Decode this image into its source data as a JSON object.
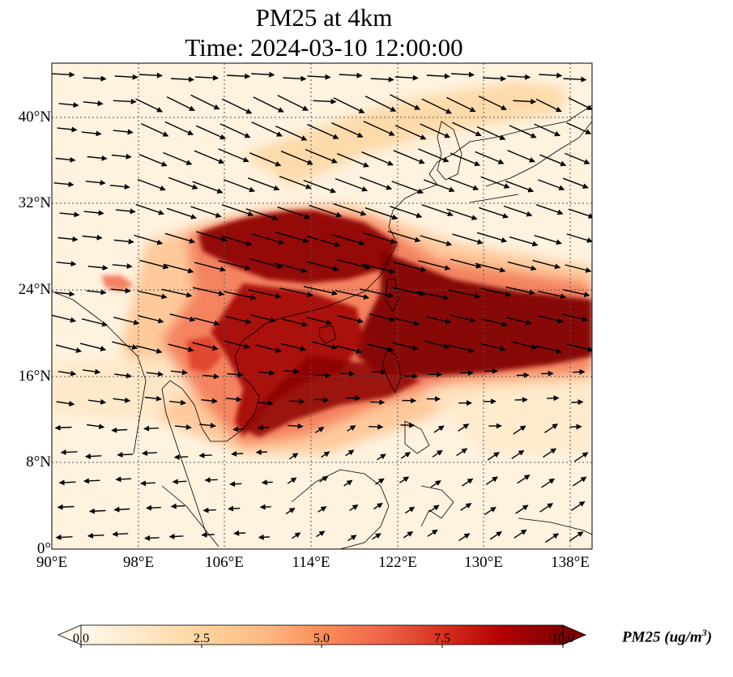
{
  "title": {
    "line1": "PM25 at 4km",
    "line2": "Time: 2024-03-10 12:00:00"
  },
  "map": {
    "projection": "PlateCarree",
    "lon_range": [
      90,
      140
    ],
    "lat_range": [
      0,
      45
    ],
    "gridlines": "dotted",
    "coastlines": true,
    "country_borders": true,
    "field": "PM25",
    "level": "4km",
    "wind_vectors": true,
    "x_ticks": [
      "90°E",
      "98°E",
      "106°E",
      "114°E",
      "122°E",
      "130°E",
      "138°E"
    ],
    "y_ticks": [
      "40°N",
      "32°N",
      "24°N",
      "16°N",
      "8°N",
      "0°"
    ]
  },
  "colorbar": {
    "label": "PM25 (ug/m³)",
    "label_base": "PM25 (ug/m",
    "label_sup": "3",
    "label_end": ")",
    "colormap": "OrRd",
    "range": [
      0.0,
      10.0
    ],
    "extend": "both",
    "ticks": [
      "0.0",
      "2.5",
      "5.0",
      "7.5",
      "10.0"
    ],
    "colors": [
      "#fff7ec",
      "#fee8c8",
      "#fdd49e",
      "#fdbb84",
      "#fc8d59",
      "#ef6548",
      "#d7301f",
      "#b30000",
      "#7f0000"
    ]
  }
}
